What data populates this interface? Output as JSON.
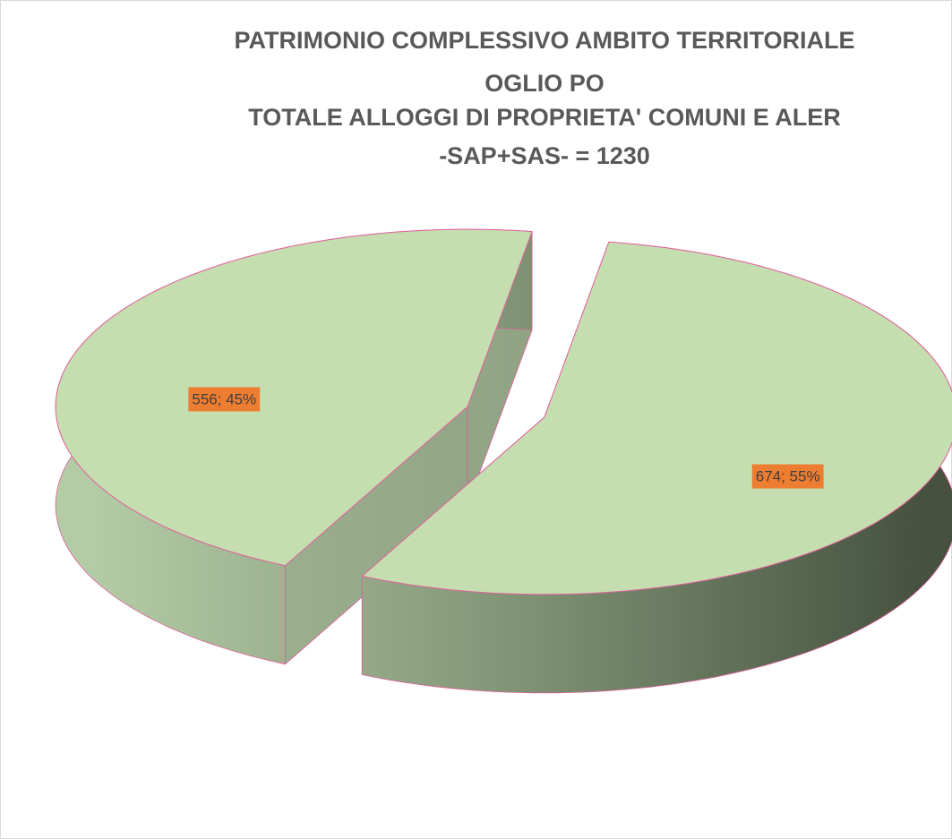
{
  "chart_data": {
    "type": "pie",
    "title": [
      "PATRIMONIO COMPLESSIVO AMBITO TERRITORIALE",
      "OGLIO PO",
      "TOTALE ALLOGGI DI PROPRIETA' COMUNI E ALER",
      "-SAP+SAS-  = 1230"
    ],
    "values": [
      674,
      556
    ],
    "value_labels": [
      "674; 55%",
      "556; 45%"
    ],
    "color": "#c5deb0",
    "edge_color": "#e0609a",
    "label_color": "#ed7d31"
  }
}
